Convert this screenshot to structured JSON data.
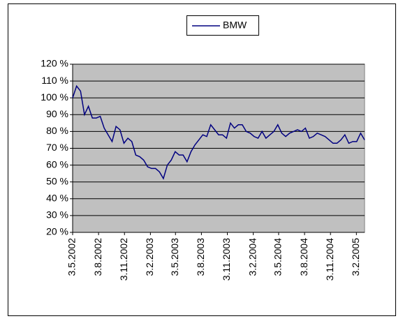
{
  "chart_data": {
    "type": "line",
    "x": [
      "2002-05-03",
      "2002-05-17",
      "2002-05-31",
      "2002-06-14",
      "2002-06-28",
      "2002-07-12",
      "2002-07-26",
      "2002-08-09",
      "2002-08-23",
      "2002-09-06",
      "2002-09-20",
      "2002-10-04",
      "2002-10-18",
      "2002-11-01",
      "2002-11-15",
      "2002-11-29",
      "2002-12-13",
      "2002-12-27",
      "2003-01-10",
      "2003-01-24",
      "2003-02-07",
      "2003-02-21",
      "2003-03-07",
      "2003-03-21",
      "2003-04-04",
      "2003-04-18",
      "2003-05-02",
      "2003-05-16",
      "2003-05-30",
      "2003-06-13",
      "2003-06-27",
      "2003-07-11",
      "2003-07-25",
      "2003-08-08",
      "2003-08-22",
      "2003-09-05",
      "2003-09-19",
      "2003-10-03",
      "2003-10-17",
      "2003-10-31",
      "2003-11-14",
      "2003-11-28",
      "2003-12-12",
      "2003-12-26",
      "2004-01-09",
      "2004-01-23",
      "2004-02-06",
      "2004-02-20",
      "2004-03-05",
      "2004-03-19",
      "2004-04-02",
      "2004-04-16",
      "2004-04-30",
      "2004-05-14",
      "2004-05-28",
      "2004-06-11",
      "2004-06-25",
      "2004-07-09",
      "2004-07-23",
      "2004-08-06",
      "2004-08-20",
      "2004-09-03",
      "2004-09-17",
      "2004-10-01",
      "2004-10-15",
      "2004-10-29",
      "2004-11-12",
      "2004-11-26",
      "2004-12-10",
      "2004-12-24",
      "2005-01-07",
      "2005-01-21",
      "2005-02-04",
      "2005-02-18",
      "2005-03-04"
    ],
    "series": [
      {
        "name": "BMW",
        "color": "#000080",
        "values": [
          100,
          107,
          104,
          90,
          95,
          88,
          88,
          89,
          82,
          78,
          74,
          83,
          81,
          73,
          76,
          74,
          66,
          65,
          63,
          59,
          58,
          58,
          56,
          52,
          60,
          63,
          68,
          66,
          66,
          62,
          68,
          72,
          75,
          78,
          77,
          84,
          81,
          78,
          78,
          76,
          85,
          82,
          84,
          84,
          80,
          79,
          77,
          76,
          80,
          76,
          78,
          80,
          84,
          79,
          77,
          79,
          80,
          81,
          80,
          82,
          76,
          77,
          79,
          78,
          77,
          75,
          73,
          73,
          75,
          78,
          73,
          74,
          74,
          79,
          75
        ]
      }
    ],
    "xlim": [
      "2002-05-03",
      "2005-03-04"
    ],
    "xticks": [
      {
        "value": "2002-05-03",
        "label": "3.5.2002"
      },
      {
        "value": "2002-08-03",
        "label": "3.8.2002"
      },
      {
        "value": "2002-11-03",
        "label": "3.11.2002"
      },
      {
        "value": "2003-02-03",
        "label": "3.2.2003"
      },
      {
        "value": "2003-05-03",
        "label": "3.5.2003"
      },
      {
        "value": "2003-08-03",
        "label": "3.8.2003"
      },
      {
        "value": "2003-11-03",
        "label": "3.11.2003"
      },
      {
        "value": "2004-02-03",
        "label": "3.2.2004"
      },
      {
        "value": "2004-05-03",
        "label": "3.5.2004"
      },
      {
        "value": "2004-08-03",
        "label": "3.8.2004"
      },
      {
        "value": "2004-11-03",
        "label": "3.11.2004"
      },
      {
        "value": "2005-02-03",
        "label": "3.2.2005"
      }
    ],
    "ylim": [
      20,
      120
    ],
    "yticks": [
      {
        "value": 20,
        "label": "20 %"
      },
      {
        "value": 30,
        "label": "30 %"
      },
      {
        "value": 40,
        "label": "40 %"
      },
      {
        "value": 50,
        "label": "50 %"
      },
      {
        "value": 60,
        "label": "60 %"
      },
      {
        "value": 70,
        "label": "70 %"
      },
      {
        "value": 80,
        "label": "80 %"
      },
      {
        "value": 90,
        "label": "90 %"
      },
      {
        "value": 100,
        "label": "100 %"
      },
      {
        "value": 110,
        "label": "110 %"
      },
      {
        "value": 120,
        "label": "120 %"
      }
    ],
    "grid": true,
    "legend": "top",
    "plot_background": "#c0c0c0"
  }
}
